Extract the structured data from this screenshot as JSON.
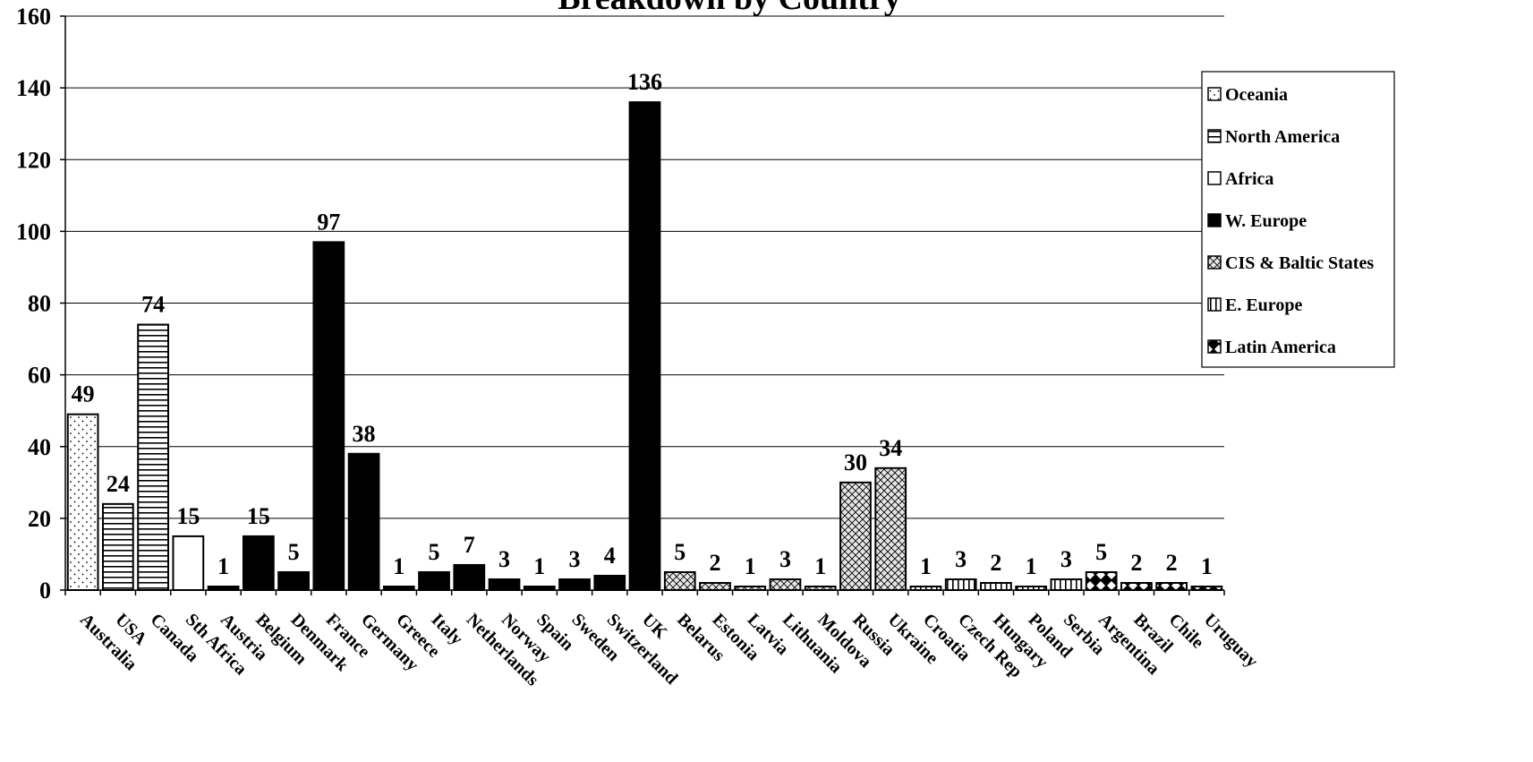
{
  "chart_data": {
    "type": "bar",
    "title": "Breakdown by Country",
    "ylim": [
      0,
      160
    ],
    "yticks": [
      0,
      20,
      40,
      60,
      80,
      100,
      120,
      140,
      160
    ],
    "grid": true,
    "legend_position": "right",
    "categories": [
      "Australia",
      "USA",
      "Canada",
      "Sth Africa",
      "Austria",
      "Belgium",
      "Denmark",
      "France",
      "Germany",
      "Greece",
      "Italy",
      "Netherlands",
      "Norway",
      "Spain",
      "Sweden",
      "Switzerland",
      "UK",
      "Belarus",
      "Estonia",
      "Latvia",
      "Lithuania",
      "Moldova",
      "Russia",
      "Ukraine",
      "Croatia",
      "Czech Rep",
      "Hungary",
      "Poland",
      "Serbia",
      "Argentina",
      "Brazil",
      "Chile",
      "Uruguay"
    ],
    "values": [
      49,
      24,
      74,
      15,
      1,
      15,
      5,
      97,
      38,
      1,
      5,
      7,
      3,
      1,
      3,
      4,
      136,
      5,
      2,
      1,
      3,
      1,
      30,
      34,
      1,
      3,
      2,
      1,
      3,
      5,
      2,
      2,
      1
    ],
    "regions": [
      "Oceania",
      "North America",
      "North America",
      "Africa",
      "W. Europe",
      "W. Europe",
      "W. Europe",
      "W. Europe",
      "W. Europe",
      "W. Europe",
      "W. Europe",
      "W. Europe",
      "W. Europe",
      "W. Europe",
      "W. Europe",
      "W. Europe",
      "W. Europe",
      "CIS & Baltic States",
      "CIS & Baltic States",
      "CIS & Baltic States",
      "CIS & Baltic States",
      "CIS & Baltic States",
      "CIS & Baltic States",
      "CIS & Baltic States",
      "E. Europe",
      "E. Europe",
      "E. Europe",
      "E. Europe",
      "E. Europe",
      "Latin America",
      "Latin America",
      "Latin America",
      "Latin America"
    ],
    "legend": [
      {
        "name": "Oceania",
        "pattern": "dots"
      },
      {
        "name": "North America",
        "pattern": "hlines"
      },
      {
        "name": "Africa",
        "pattern": "white"
      },
      {
        "name": "W. Europe",
        "pattern": "solid"
      },
      {
        "name": "CIS & Baltic States",
        "pattern": "crosshatch"
      },
      {
        "name": "E. Europe",
        "pattern": "vlines"
      },
      {
        "name": "Latin America",
        "pattern": "diamonds"
      }
    ]
  }
}
